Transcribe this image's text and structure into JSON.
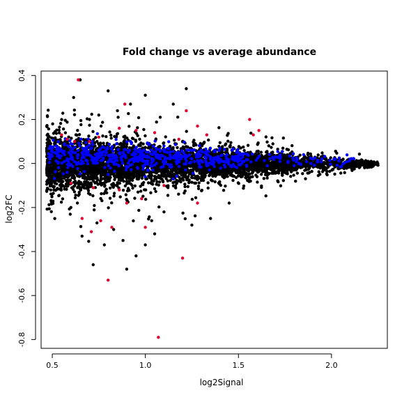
{
  "chart_data": {
    "type": "scatter",
    "title": "Fold change vs average abundance",
    "xlabel": "log2Signal",
    "ylabel": "log2FC",
    "xlim": [
      0.44,
      2.3
    ],
    "ylim": [
      -0.84,
      0.42
    ],
    "xticks": [
      0.5,
      1.0,
      1.5,
      2.0
    ],
    "xtick_labels": [
      "0.5",
      "1.0",
      "1.5",
      "2.0"
    ],
    "yticks": [
      -0.8,
      -0.6,
      -0.4,
      -0.2,
      0.0,
      0.2,
      0.4
    ],
    "ytick_labels": [
      "-0.8",
      "-0.6",
      "-0.4",
      "-0.2",
      "0.0",
      "0.2",
      "0.4"
    ],
    "grid": false,
    "colors": {
      "background": "#ffffff",
      "black": "#000000",
      "blue": "#0000ff",
      "red": "#e00030"
    },
    "series": [
      {
        "color": "#000000",
        "description": "bulk of points: band around y=0 narrowing as x increases",
        "band": {
          "x_range": [
            0.47,
            2.25
          ],
          "spread_at_left": 0.11,
          "spread_at_right": 0.008
        },
        "outliers": [
          [
            0.65,
            0.38
          ],
          [
            0.8,
            0.33
          ],
          [
            1.0,
            0.31
          ],
          [
            1.22,
            0.34
          ],
          [
            0.92,
            0.27
          ],
          [
            0.75,
            0.22
          ],
          [
            1.15,
            0.27
          ],
          [
            0.7,
            0.2
          ],
          [
            1.08,
            0.21
          ],
          [
            0.85,
            0.24
          ],
          [
            0.72,
            -0.46
          ],
          [
            0.9,
            -0.48
          ],
          [
            0.95,
            -0.42
          ],
          [
            1.0,
            -0.37
          ],
          [
            0.78,
            -0.37
          ],
          [
            0.66,
            -0.33
          ],
          [
            1.25,
            -0.28
          ],
          [
            1.35,
            -0.25
          ],
          [
            1.1,
            -0.22
          ],
          [
            0.6,
            -0.2
          ],
          [
            0.83,
            -0.3
          ],
          [
            0.88,
            -0.35
          ],
          [
            1.05,
            -0.32
          ],
          [
            1.45,
            -0.18
          ],
          [
            0.74,
            -0.27
          ]
        ]
      },
      {
        "color": "#0000ff",
        "description": "points scattered in upper part of band",
        "band": {
          "x_range": [
            0.48,
            2.12
          ],
          "center": 0.04,
          "spread": 0.035
        },
        "points": [
          [
            0.5,
            0.07
          ],
          [
            0.52,
            0.08
          ],
          [
            0.6,
            0.09
          ],
          [
            0.75,
            0.06
          ],
          [
            0.95,
            0.06
          ],
          [
            1.1,
            0.08
          ],
          [
            1.3,
            0.06
          ],
          [
            1.5,
            0.05
          ],
          [
            1.7,
            0.03
          ],
          [
            1.85,
            0.04
          ],
          [
            2.02,
            0.02
          ],
          [
            2.1,
            0.02
          ],
          [
            0.8,
            -0.05
          ],
          [
            1.0,
            -0.06
          ],
          [
            1.15,
            -0.07
          ]
        ]
      },
      {
        "color": "#e00030",
        "description": "differentially expressed points",
        "points": [
          [
            0.64,
            0.38
          ],
          [
            0.89,
            0.27
          ],
          [
            1.22,
            0.24
          ],
          [
            1.56,
            0.2
          ],
          [
            1.28,
            0.17
          ],
          [
            0.75,
            0.12
          ],
          [
            0.58,
            0.11
          ],
          [
            0.62,
            0.1
          ],
          [
            0.86,
            0.16
          ],
          [
            1.58,
            0.13
          ],
          [
            1.61,
            0.15
          ],
          [
            1.33,
            0.13
          ],
          [
            0.95,
            0.15
          ],
          [
            1.05,
            0.14
          ],
          [
            0.7,
            0.1
          ],
          [
            0.55,
            0.13
          ],
          [
            1.18,
            0.11
          ],
          [
            0.8,
            -0.53
          ],
          [
            1.07,
            -0.79
          ],
          [
            1.2,
            -0.43
          ],
          [
            0.71,
            -0.31
          ],
          [
            0.82,
            -0.29
          ],
          [
            0.66,
            -0.25
          ],
          [
            0.76,
            -0.26
          ],
          [
            1.28,
            -0.18
          ],
          [
            0.98,
            -0.16
          ],
          [
            0.86,
            -0.12
          ],
          [
            0.72,
            -0.11
          ],
          [
            0.6,
            -0.09
          ],
          [
            1.1,
            -0.1
          ],
          [
            1.0,
            -0.29
          ],
          [
            0.9,
            -0.18
          ]
        ]
      }
    ]
  }
}
